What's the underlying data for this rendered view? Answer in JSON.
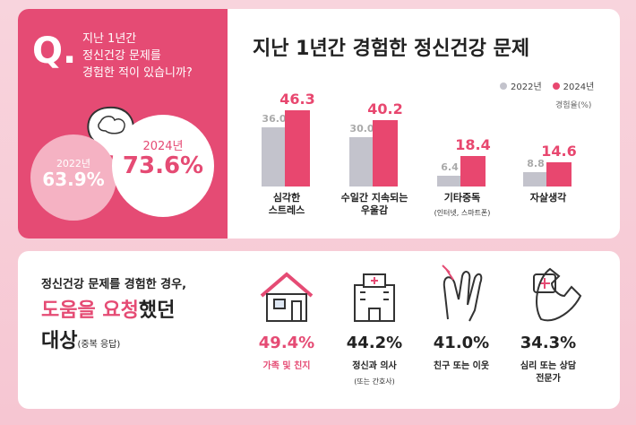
{
  "question": {
    "mark": "Q.",
    "lines": [
      "지난 1년간",
      "정신건강 문제를",
      "경험한 적이 있습니까?"
    ],
    "items": [
      {
        "label": "2022년",
        "value": "63.9%"
      },
      {
        "label": "2024년",
        "value": "73.6%"
      }
    ]
  },
  "chart_data": {
    "type": "bar",
    "title": "지난 1년간 경험한 정신건강 문제",
    "y_label": "경험율(%)",
    "categories": [
      "심각한 스트레스",
      "수일간 지속되는 우울감",
      "기타중독",
      "자살생각"
    ],
    "category_notes": [
      null,
      null,
      "(인터넷, 스마트폰)",
      null
    ],
    "series": [
      {
        "name": "2022년",
        "color": "#c3c3cc",
        "values": [
          36.0,
          30.0,
          6.4,
          8.8
        ],
        "value_labels": [
          "36.0",
          "30.0",
          "6.4",
          "8.8"
        ]
      },
      {
        "name": "2024년",
        "color": "#e8476f",
        "values": [
          46.3,
          40.2,
          18.4,
          14.6
        ]
      }
    ],
    "ylim": [
      0,
      50
    ],
    "legend": "top-right"
  },
  "help": {
    "headline": [
      "정신건강 문제를 경험한 경우,",
      "도움을 요청",
      "했던",
      "대상",
      "(중복 응답)"
    ],
    "items": [
      {
        "value": "49.4%",
        "label": "가족 및 친지"
      },
      {
        "value": "44.2%",
        "label": "정신과 의사",
        "note": "(또는 간호사)"
      },
      {
        "value": "41.0%",
        "label": "친구 또는 이웃"
      },
      {
        "value": "34.3%",
        "label": "심리 또는 상담 전문가"
      }
    ]
  }
}
